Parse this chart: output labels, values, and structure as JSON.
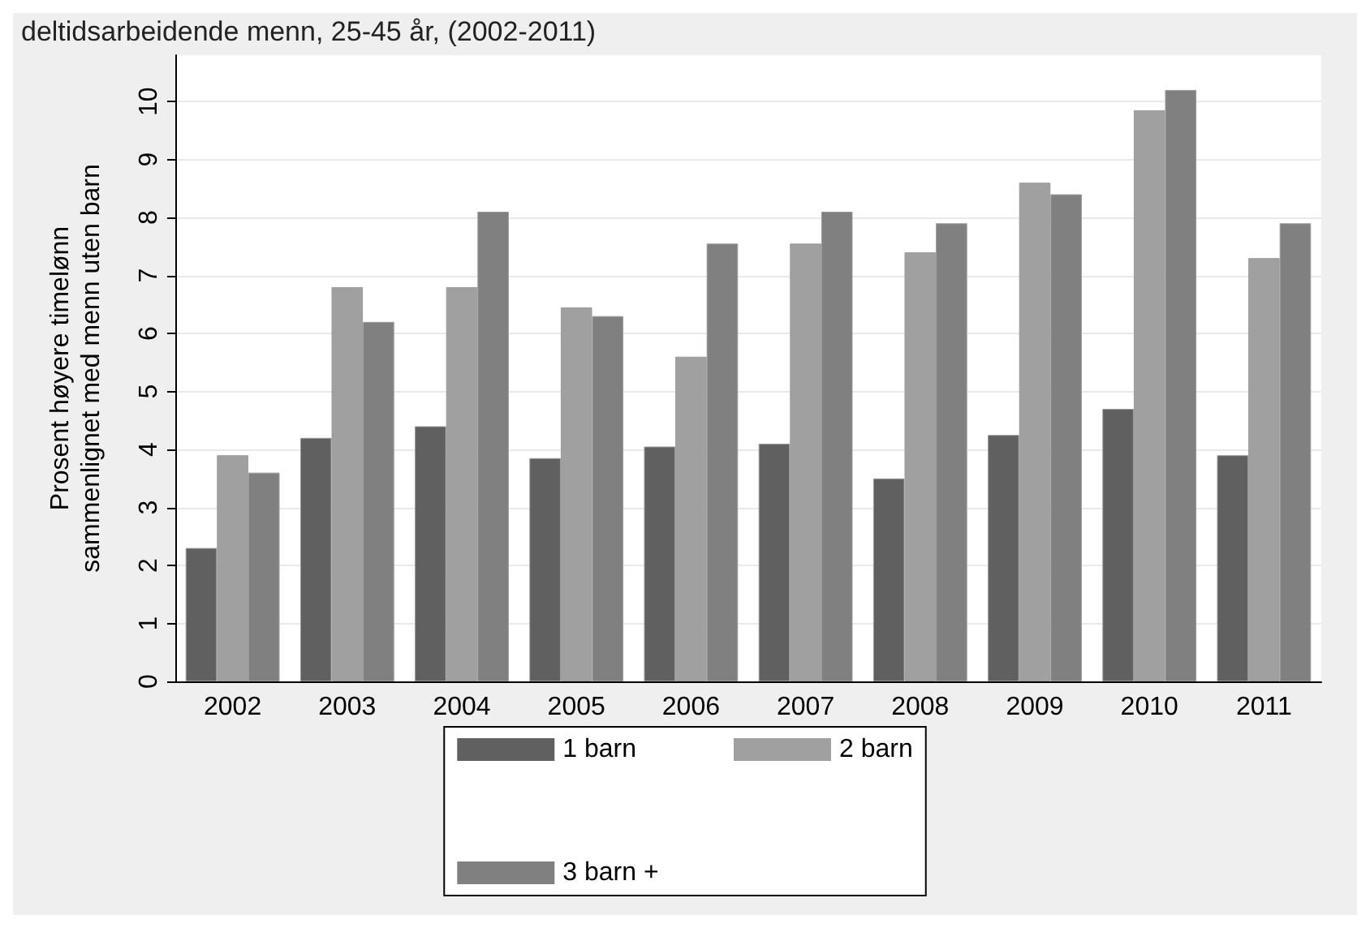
{
  "chart_data": {
    "type": "bar",
    "title": "deltidsarbeidende menn, 25-45 år, (2002-2011)",
    "ylabel": "Prosent høyere timelønn\nsammenlignet med menn uten barn",
    "categories": [
      "2002",
      "2003",
      "2004",
      "2005",
      "2006",
      "2007",
      "2008",
      "2009",
      "2010",
      "2011"
    ],
    "series": [
      {
        "name": "1 barn",
        "color": "#606060",
        "values": [
          2.3,
          4.2,
          4.4,
          3.85,
          4.05,
          4.1,
          3.5,
          4.25,
          4.7,
          3.9
        ]
      },
      {
        "name": "2 barn",
        "color": "#a0a0a0",
        "values": [
          3.9,
          6.8,
          6.8,
          6.45,
          5.6,
          7.55,
          7.4,
          8.6,
          9.85,
          7.3
        ]
      },
      {
        "name": "3 barn +",
        "color": "#808080",
        "values": [
          3.6,
          6.2,
          8.1,
          6.3,
          7.55,
          8.1,
          7.9,
          8.4,
          10.2,
          7.9
        ]
      }
    ],
    "ylim": [
      0,
      10.8
    ],
    "yticks": [
      0,
      1,
      2,
      3,
      4,
      5,
      6,
      7,
      8,
      9,
      10
    ],
    "grid": "y",
    "legend": "bottom"
  }
}
